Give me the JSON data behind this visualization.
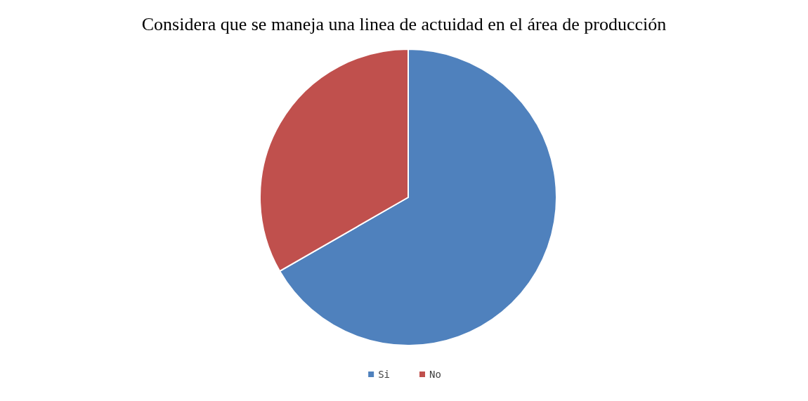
{
  "chart_data": {
    "type": "pie",
    "title": "Considera que se maneja una linea de actuidad en el área de producción",
    "categories": [
      "Si",
      "No"
    ],
    "values": [
      66.7,
      33.3
    ],
    "colors": [
      "#4f81bd",
      "#c0504d"
    ],
    "legend": "bottom"
  }
}
